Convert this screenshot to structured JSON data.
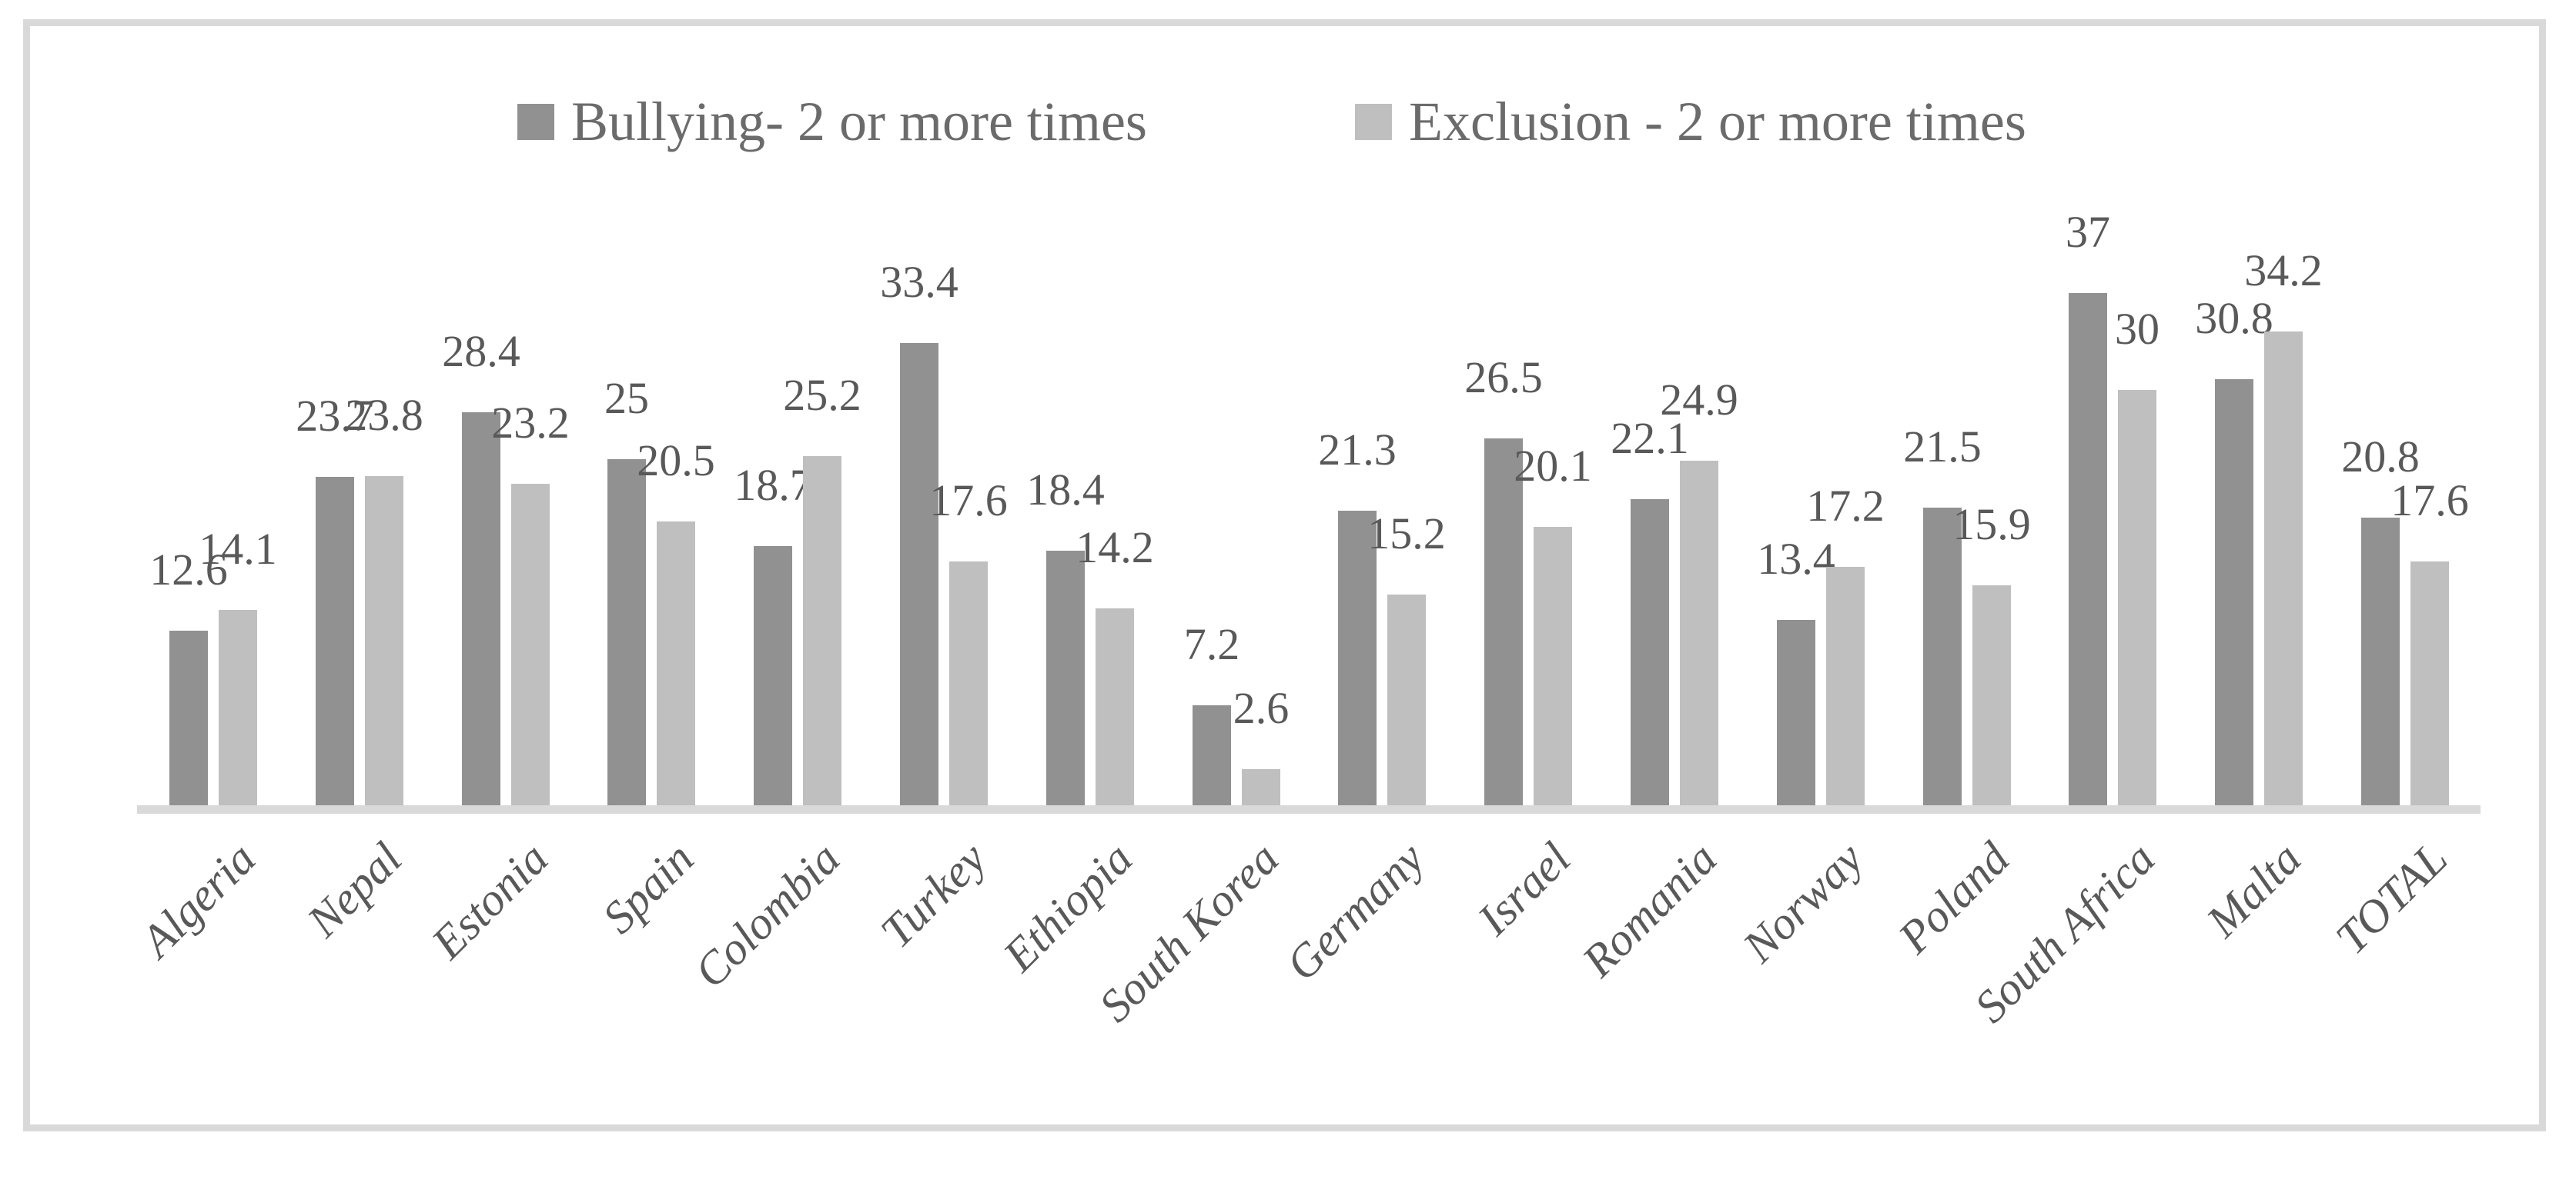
{
  "chart_data": {
    "type": "bar",
    "title": "",
    "xlabel": "",
    "ylabel": "",
    "categories": [
      "Algeria",
      "Nepal",
      "Estonia",
      "Spain",
      "Colombia",
      "Turkey",
      "Ethiopia",
      "South Korea",
      "Germany",
      "Israel",
      "Romania",
      "Norway",
      "Poland",
      "South Africa",
      "Malta",
      "TOTAL"
    ],
    "series": [
      {
        "name": "Bullying- 2 or more times",
        "color": "#919191",
        "values": [
          12.6,
          23.7,
          28.4,
          25,
          18.7,
          33.4,
          18.4,
          7.2,
          21.3,
          26.5,
          22.1,
          13.4,
          21.5,
          37,
          30.8,
          20.8
        ]
      },
      {
        "name": "Exclusion - 2 or more times",
        "color": "#bfbfbf",
        "values": [
          14.1,
          23.8,
          23.2,
          20.5,
          25.2,
          17.6,
          14.2,
          2.6,
          15.2,
          20.1,
          24.9,
          17.2,
          15.9,
          30,
          34.2,
          17.6
        ]
      }
    ],
    "ylim": [
      0,
      40
    ],
    "grid": false,
    "legend_position": "top-center",
    "data_labels": "outside-end",
    "tick_label_rotation_deg": -45
  },
  "colors": {
    "frame_border": "#d9d9d9",
    "axis_line": "#d9d9d9",
    "label_text": "#595959",
    "legend_text": "#6b6b6b",
    "background": "#ffffff"
  }
}
